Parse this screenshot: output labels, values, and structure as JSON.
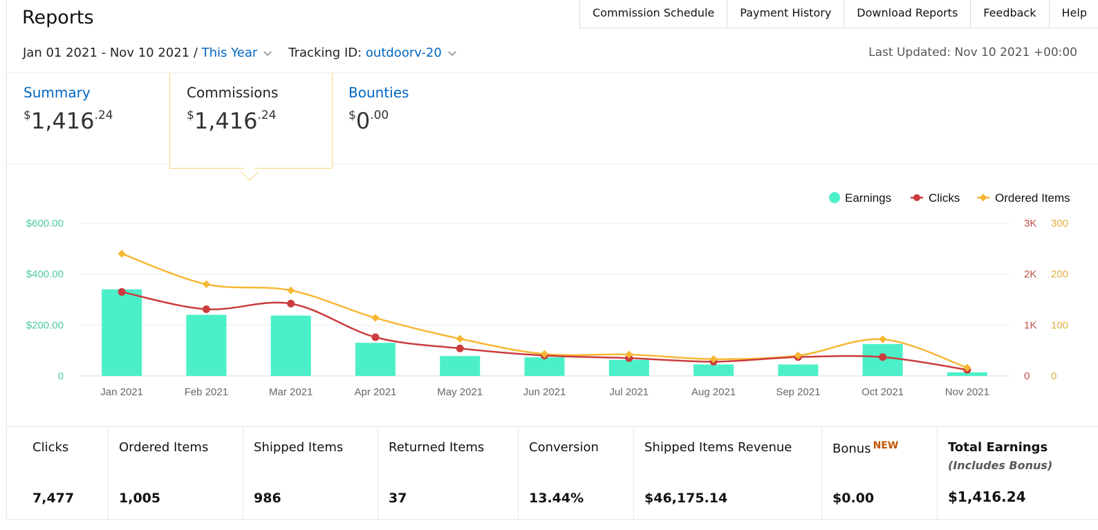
{
  "header": {
    "title": "Reports",
    "nav": [
      "Commission Schedule",
      "Payment History",
      "Download Reports",
      "Feedback",
      "Help"
    ]
  },
  "filters": {
    "date_range": "Jan 01 2021 - Nov 10 2021 /",
    "period": "This Year",
    "tracking_label": "Tracking ID:",
    "tracking_id": "outdoorv-20",
    "last_updated": "Last Updated: Nov 10 2021 +00:00"
  },
  "tabs": [
    {
      "label": "Summary",
      "currency": "$",
      "whole": "1,416",
      "cents": ".24"
    },
    {
      "label": "Commissions",
      "currency": "$",
      "whole": "1,416",
      "cents": ".24"
    },
    {
      "label": "Bounties",
      "currency": "$",
      "whole": "0",
      "cents": ".00"
    }
  ],
  "chart_data": {
    "type": "bar+line",
    "categories": [
      "Jan 2021",
      "Feb 2021",
      "Mar 2021",
      "Apr 2021",
      "May 2021",
      "Jun 2021",
      "Jul 2021",
      "Aug 2021",
      "Sep 2021",
      "Oct 2021",
      "Nov 2021"
    ],
    "legend": [
      "Earnings",
      "Clicks",
      "Ordered Items"
    ],
    "legend_position": "top-right",
    "series": [
      {
        "name": "Earnings",
        "kind": "bar",
        "axis": "left",
        "color": "#4bf0c8",
        "values": [
          340,
          240,
          237,
          130,
          78,
          73,
          63,
          45,
          45,
          125,
          14
        ]
      },
      {
        "name": "Clicks",
        "kind": "line",
        "axis": "right1",
        "color": "#cc3b3b",
        "values": [
          1650,
          1310,
          1420,
          760,
          540,
          400,
          350,
          280,
          370,
          370,
          120
        ]
      },
      {
        "name": "Ordered Items",
        "kind": "line",
        "axis": "right2",
        "color": "#f7b733",
        "values": [
          240,
          180,
          168,
          114,
          73,
          43,
          42,
          33,
          40,
          72,
          16
        ]
      }
    ],
    "left_axis": {
      "ticks": [
        "0",
        "$200.00",
        "$400.00",
        "$600.00"
      ],
      "range": [
        0,
        600
      ],
      "color": "#4fc9a7"
    },
    "right_axis_1": {
      "ticks": [
        "0",
        "1K",
        "2K",
        "3K"
      ],
      "range": [
        0,
        3000
      ],
      "color": "#c0504d"
    },
    "right_axis_2": {
      "ticks": [
        "0",
        "100",
        "200",
        "300"
      ],
      "range": [
        0,
        300
      ],
      "color": "#e0b040"
    },
    "grid": true
  },
  "stats": [
    {
      "label": "Clicks",
      "value": "7,477"
    },
    {
      "label": "Ordered Items",
      "value": "1,005"
    },
    {
      "label": "Shipped Items",
      "value": "986"
    },
    {
      "label": "Returned Items",
      "value": "37"
    },
    {
      "label": "Conversion",
      "value": "13.44%"
    },
    {
      "label": "Shipped Items Revenue",
      "value": "$46,175.14"
    },
    {
      "label": "Bonus",
      "badge": "NEW",
      "value": "$0.00"
    },
    {
      "label": "Total Earnings",
      "sub": "(Includes Bonus)",
      "value": "$1,416.24"
    }
  ]
}
